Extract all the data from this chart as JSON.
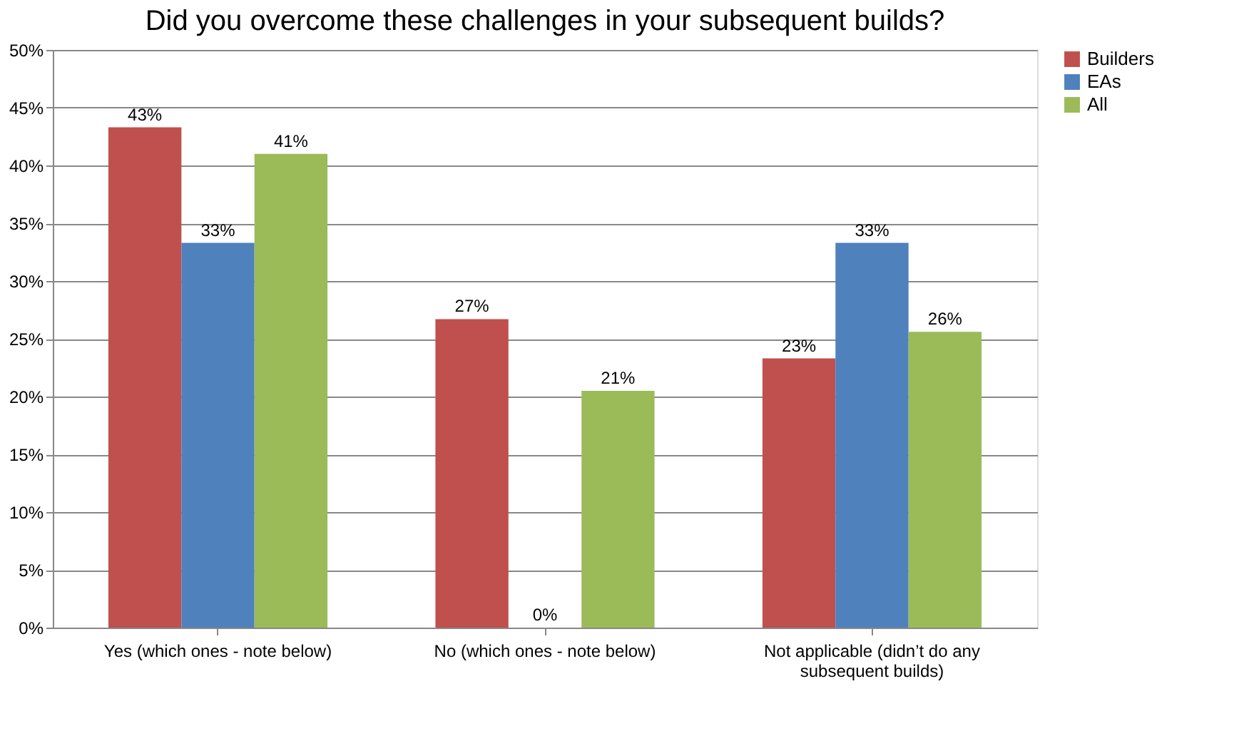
{
  "chart_data": {
    "type": "bar",
    "title": "Did you overcome these challenges in your subsequent builds?",
    "categories": [
      "Yes (which ones - note below)",
      "No (which ones - note below)",
      "Not applicable (didn’t do any subsequent builds)"
    ],
    "series": [
      {
        "name": "Builders",
        "color": "#c0504d",
        "values": [
          43.3,
          26.7,
          23.3
        ],
        "value_labels": [
          "43%",
          "27%",
          "23%"
        ]
      },
      {
        "name": "EAs",
        "color": "#4f81bd",
        "values": [
          33.3,
          0,
          33.3
        ],
        "value_labels": [
          "33%",
          "0%",
          "33%"
        ]
      },
      {
        "name": "All",
        "color": "#9bbb59",
        "values": [
          41,
          20.5,
          25.6
        ],
        "value_labels": [
          "41%",
          "21%",
          "26%"
        ]
      }
    ],
    "ylim": [
      0,
      50
    ],
    "yticks": [
      {
        "value": 0,
        "label": "0%"
      },
      {
        "value": 5,
        "label": "5%"
      },
      {
        "value": 10,
        "label": "10%"
      },
      {
        "value": 15,
        "label": "15%"
      },
      {
        "value": 20,
        "label": "20%"
      },
      {
        "value": 25,
        "label": "25%"
      },
      {
        "value": 30,
        "label": "30%"
      },
      {
        "value": 35,
        "label": "35%"
      },
      {
        "value": 40,
        "label": "40%"
      },
      {
        "value": 45,
        "label": "45%"
      },
      {
        "value": 50,
        "label": "50%"
      }
    ],
    "grid": "y",
    "legend": "right"
  }
}
